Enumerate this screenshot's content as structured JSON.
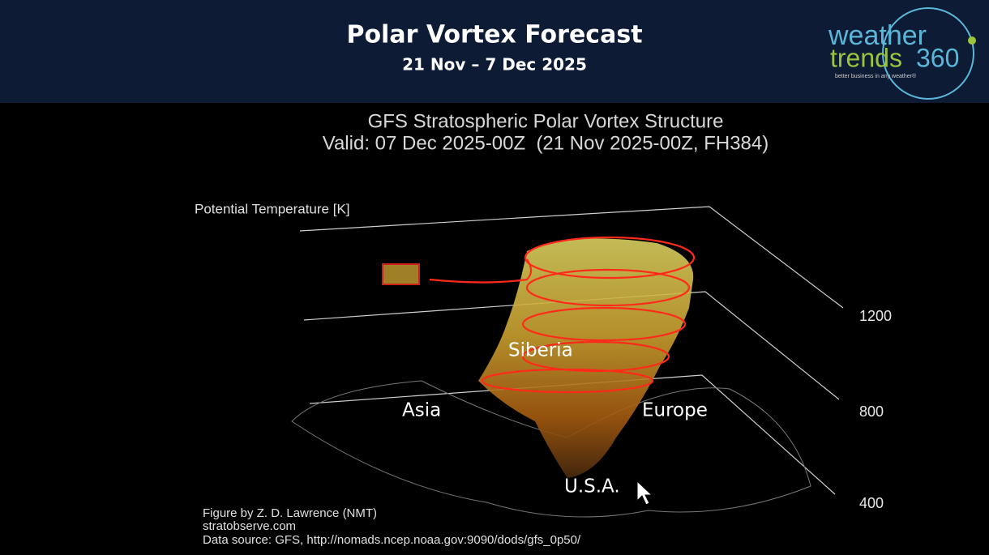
{
  "header": {
    "title": "Polar Vortex Forecast",
    "subtitle": "21 Nov – 7 Dec 2025",
    "logo": {
      "line1": "weather",
      "line2": "trends",
      "number": "360",
      "tagline": "better business in any weather®"
    }
  },
  "figure": {
    "title": "GFS Stratospheric Polar Vortex Structure",
    "subtitle": "Valid: 07 Dec 2025-00Z  (21 Nov 2025-00Z, FH384)",
    "axis_label": "Potential Temperature [K]",
    "ticks": [
      1200,
      800,
      400
    ],
    "annotations": [
      "Siberia",
      "Asia",
      "Europe",
      "U.S.A."
    ],
    "credits": [
      "Figure by Z. D. Lawrence (NMT)",
      "stratobserve.com",
      "Data source: GFS, http://nomads.ncep.noaa.gov:9090/dods/gfs_0p50/"
    ]
  }
}
